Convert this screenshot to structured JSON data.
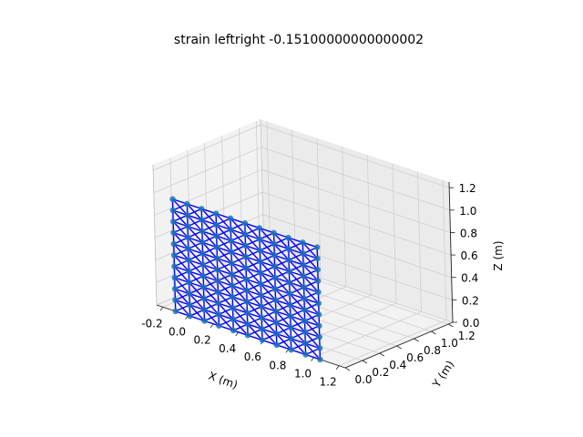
{
  "chart_data": {
    "type": "scatter",
    "title": "strain leftright -0.15100000000000002",
    "xlabel": "X (m)",
    "ylabel": "Y (m)",
    "zlabel": "Z (m)",
    "xlim": [
      -0.25,
      1.25
    ],
    "ylim": [
      0.0,
      1.25
    ],
    "zlim": [
      0.0,
      1.25
    ],
    "xticks": [
      "-0.2",
      "0.0",
      "0.2",
      "0.4",
      "0.6",
      "0.8",
      "1.0",
      "1.2"
    ],
    "yticks": [
      "0.0",
      "0.2",
      "0.4",
      "0.6",
      "0.8",
      "1.0",
      "1.2"
    ],
    "zticks": [
      "0.0",
      "0.2",
      "0.4",
      "0.6",
      "0.8",
      "1.0",
      "1.2"
    ],
    "grid": true,
    "mesh": {
      "x_range": [
        -0.1,
        1.05
      ],
      "y_value": 0.0,
      "z_range": [
        0.0,
        1.0
      ],
      "nx": 11,
      "nz": 11,
      "node_color": "#1f77b4",
      "edge_color": "#0000ff"
    }
  }
}
